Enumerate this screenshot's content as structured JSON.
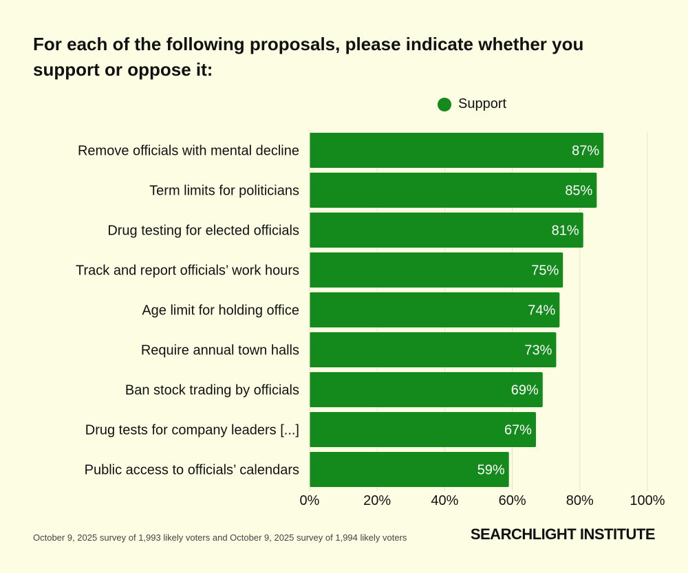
{
  "title": "For each of the following proposals, please indicate whether you support or oppose it:",
  "legend": {
    "label": "Support",
    "color": "#14891c"
  },
  "footer": "October 9, 2025 survey of 1,993 likely voters and October 9, 2025 survey of 1,994 likely voters",
  "brand": "SEARCHLIGHT INSTITUTE",
  "chart_data": {
    "type": "bar",
    "orientation": "horizontal",
    "title": "For each of the following proposals, please indicate whether you support or oppose it:",
    "categories": [
      "Remove officials with mental decline",
      "Term limits for politicians",
      "Drug testing for elected officials",
      "Track and report officials’ work hours",
      "Age limit for holding office",
      "Require annual town halls",
      "Ban stock trading by officials",
      "Drug tests for company leaders [...]",
      "Public access to officials’ calendars"
    ],
    "series": [
      {
        "name": "Support",
        "values": [
          87,
          85,
          81,
          75,
          74,
          73,
          69,
          67,
          59
        ],
        "labels": [
          "87%",
          "85%",
          "81%",
          "75%",
          "74%",
          "73%",
          "69%",
          "67%",
          "59%"
        ],
        "color": "#14891c"
      }
    ],
    "xlim": [
      0,
      100
    ],
    "xticks": [
      0,
      20,
      40,
      60,
      80,
      100
    ],
    "xtick_labels": [
      "0%",
      "20%",
      "40%",
      "60%",
      "80%",
      "100%"
    ],
    "grid": true,
    "legend_position": "top"
  }
}
